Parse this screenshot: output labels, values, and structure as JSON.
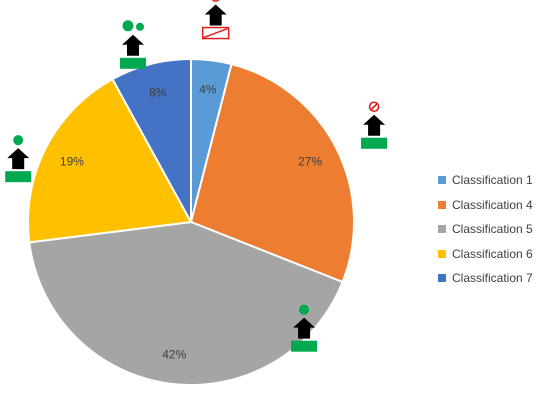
{
  "chart_data": {
    "type": "pie",
    "slices": [
      {
        "label": "Classification 1",
        "value": 4,
        "display": "4%",
        "color": "#5B9BD5"
      },
      {
        "label": "Classification 4",
        "value": 27,
        "display": "27%",
        "color": "#ED7D31"
      },
      {
        "label": "Classification 5",
        "value": 42,
        "display": "42%",
        "color": "#A5A5A5"
      },
      {
        "label": "Classification 6",
        "value": 19,
        "display": "19%",
        "color": "#FFC000"
      },
      {
        "label": "Classification 7",
        "value": 8,
        "display": "8%",
        "color": "#4472C4"
      }
    ],
    "legend_position": "right",
    "start_angle": "top",
    "direction": "clockwise"
  },
  "legend": {
    "items": [
      {
        "label": "Classification 1",
        "color": "#5B9BD5"
      },
      {
        "label": "Classification 4",
        "color": "#ED7D31"
      },
      {
        "label": "Classification 5",
        "color": "#A5A5A5"
      },
      {
        "label": "Classification 6",
        "color": "#FFC000"
      },
      {
        "label": "Classification 7",
        "color": "#4472C4"
      }
    ]
  },
  "markers": [
    {
      "slice": "Classification 1",
      "icon": "house-with-prohibited-sign-and-empty-base-icon",
      "base_color": "#E02020",
      "sign_color": "#E02020"
    },
    {
      "slice": "Classification 4",
      "icon": "house-with-prohibited-sign-icon",
      "base_color": "#00A84F",
      "sign_color": "#E02020"
    },
    {
      "slice": "Classification 5",
      "icon": "house-with-one-dot-icon",
      "base_color": "#00A84F",
      "dot_color": "#00A84F"
    },
    {
      "slice": "Classification 6",
      "icon": "house-with-one-dot-icon",
      "base_color": "#00A84F",
      "dot_color": "#00A84F"
    },
    {
      "slice": "Classification 7",
      "icon": "house-with-two-dots-icon",
      "base_color": "#00A84F",
      "dot_color": "#00A84F"
    }
  ]
}
